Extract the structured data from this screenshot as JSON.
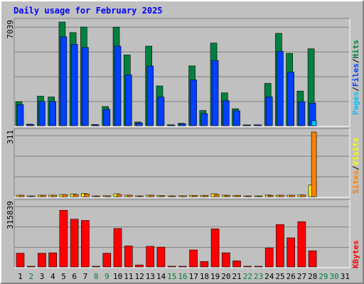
{
  "title": "Daily usage for February 2025",
  "colors": {
    "hits": "#008040",
    "files": "#0040ff",
    "pages": "#00c0ff",
    "visits": "#ffff00",
    "sites": "#ff8000",
    "kbytes": "#ff0000",
    "weekday_label": "#000000",
    "weekend_label": "#008040",
    "panel_bg": "#c0c0c0"
  },
  "right_legend": {
    "top": [
      {
        "text": "Pages",
        "color": "#00c0ff"
      },
      {
        "text": "/",
        "color": "#000000"
      },
      {
        "text": "Files",
        "color": "#0040ff"
      },
      {
        "text": "/",
        "color": "#000000"
      },
      {
        "text": "Hits",
        "color": "#008040"
      }
    ],
    "middle": [
      {
        "text": "Sites",
        "color": "#ff8000"
      },
      {
        "text": "/",
        "color": "#000000"
      },
      {
        "text": "Visits",
        "color": "#ffff00"
      }
    ],
    "bottom": [
      {
        "text": "KBytes",
        "color": "#ff0000"
      }
    ]
  },
  "chart_data": [
    {
      "type": "bar",
      "panel": "hits-files-pages",
      "ymax_label": "7039",
      "ylim": [
        0,
        7039
      ],
      "categories": [
        "1",
        "2",
        "3",
        "4",
        "5",
        "6",
        "7",
        "8",
        "9",
        "10",
        "11",
        "12",
        "13",
        "14",
        "15",
        "16",
        "17",
        "18",
        "19",
        "20",
        "21",
        "22",
        "23",
        "24",
        "25",
        "26",
        "27",
        "28",
        "29",
        "30",
        "31"
      ],
      "series": [
        {
          "name": "Hits",
          "values": [
            1620,
            100,
            2000,
            1950,
            7039,
            6320,
            6700,
            80,
            1300,
            6690,
            4800,
            250,
            5400,
            2700,
            60,
            160,
            4060,
            1030,
            5610,
            2230,
            1150,
            15,
            60,
            2870,
            6270,
            4910,
            2350,
            5220,
            0,
            0,
            0
          ]
        },
        {
          "name": "Files",
          "values": [
            1430,
            60,
            1650,
            1640,
            6030,
            5530,
            5310,
            50,
            1110,
            5400,
            3450,
            180,
            4050,
            1940,
            40,
            120,
            3110,
            820,
            4430,
            1700,
            1010,
            10,
            40,
            1960,
            5050,
            3640,
            1630,
            1530,
            0,
            0,
            0
          ]
        },
        {
          "name": "Pages",
          "values": [
            0,
            0,
            0,
            0,
            0,
            0,
            0,
            0,
            0,
            0,
            0,
            0,
            0,
            0,
            0,
            0,
            0,
            0,
            0,
            0,
            0,
            0,
            0,
            0,
            0,
            0,
            0,
            340,
            0,
            0,
            0
          ]
        }
      ]
    },
    {
      "type": "bar",
      "panel": "sites-visits",
      "ymax_label": "311",
      "ylim": [
        0,
        311
      ],
      "categories": [
        "1",
        "2",
        "3",
        "4",
        "5",
        "6",
        "7",
        "8",
        "9",
        "10",
        "11",
        "12",
        "13",
        "14",
        "15",
        "16",
        "17",
        "18",
        "19",
        "20",
        "21",
        "22",
        "23",
        "24",
        "25",
        "26",
        "27",
        "28",
        "29",
        "30",
        "31"
      ],
      "series": [
        {
          "name": "Sites",
          "values": [
            7,
            3,
            7,
            7,
            10,
            10,
            13,
            3,
            4,
            10,
            7,
            3,
            7,
            5,
            3,
            4,
            6,
            6,
            10,
            6,
            6,
            1,
            3,
            6,
            7,
            7,
            8,
            311,
            0,
            0,
            0
          ]
        },
        {
          "name": "Visits",
          "values": [
            7,
            3,
            7,
            7,
            10,
            13,
            16,
            3,
            4,
            14,
            7,
            3,
            7,
            5,
            3,
            4,
            6,
            6,
            14,
            7,
            6,
            1,
            3,
            8,
            7,
            7,
            8,
            56,
            0,
            0,
            0
          ]
        }
      ]
    },
    {
      "type": "bar",
      "panel": "kbytes",
      "ymax_label": "315839",
      "ylim": [
        0,
        315839
      ],
      "categories": [
        "1",
        "2",
        "3",
        "4",
        "5",
        "6",
        "7",
        "8",
        "9",
        "10",
        "11",
        "12",
        "13",
        "14",
        "15",
        "16",
        "17",
        "18",
        "19",
        "20",
        "21",
        "22",
        "23",
        "24",
        "25",
        "26",
        "27",
        "28",
        "29",
        "30",
        "31"
      ],
      "series": [
        {
          "name": "KBytes",
          "values": [
            68000,
            1500,
            68000,
            70000,
            280000,
            236000,
            230000,
            1500,
            68000,
            190000,
            104000,
            10000,
            102000,
            98000,
            1500,
            2000,
            84000,
            27000,
            188000,
            70000,
            30000,
            500,
            1500,
            94000,
            210000,
            144000,
            224000,
            80000,
            0,
            0,
            0
          ]
        }
      ]
    }
  ],
  "day_labels": [
    {
      "d": "1",
      "weekend": false
    },
    {
      "d": "2",
      "weekend": true
    },
    {
      "d": "3",
      "weekend": false
    },
    {
      "d": "4",
      "weekend": false
    },
    {
      "d": "5",
      "weekend": false
    },
    {
      "d": "6",
      "weekend": false
    },
    {
      "d": "7",
      "weekend": false
    },
    {
      "d": "8",
      "weekend": true
    },
    {
      "d": "9",
      "weekend": true
    },
    {
      "d": "10",
      "weekend": false
    },
    {
      "d": "11",
      "weekend": false
    },
    {
      "d": "12",
      "weekend": false
    },
    {
      "d": "13",
      "weekend": false
    },
    {
      "d": "14",
      "weekend": false
    },
    {
      "d": "15",
      "weekend": true
    },
    {
      "d": "16",
      "weekend": true
    },
    {
      "d": "17",
      "weekend": false
    },
    {
      "d": "18",
      "weekend": false
    },
    {
      "d": "19",
      "weekend": false
    },
    {
      "d": "20",
      "weekend": false
    },
    {
      "d": "21",
      "weekend": false
    },
    {
      "d": "22",
      "weekend": true
    },
    {
      "d": "23",
      "weekend": true
    },
    {
      "d": "24",
      "weekend": false
    },
    {
      "d": "25",
      "weekend": false
    },
    {
      "d": "26",
      "weekend": false
    },
    {
      "d": "27",
      "weekend": false
    },
    {
      "d": "28",
      "weekend": false
    },
    {
      "d": "29",
      "weekend": true
    },
    {
      "d": "30",
      "weekend": true
    },
    {
      "d": "31",
      "weekend": false
    }
  ]
}
